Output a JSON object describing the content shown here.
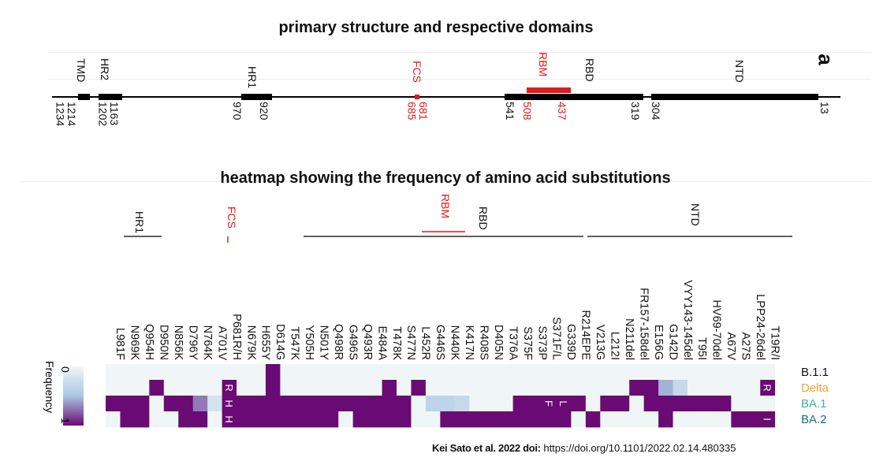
{
  "titles": {
    "structure": "primary structure and respective domains",
    "heatmap": "heatmap showing the frequency of amino acid substitutions",
    "panel_letter": "a"
  },
  "structure": {
    "domains": [
      {
        "label": "TMD",
        "color": "#111111"
      },
      {
        "label": "HR2",
        "color": "#111111"
      },
      {
        "label": "HR1",
        "color": "#111111"
      },
      {
        "label": "FCS",
        "color": "#e31a1c"
      },
      {
        "label": "RBM",
        "color": "#e31a1c"
      },
      {
        "label": "RBD",
        "color": "#111111"
      },
      {
        "label": "NTD",
        "color": "#111111"
      }
    ],
    "positions": [
      {
        "label": "1214\n1234",
        "color": "#111111"
      },
      {
        "label": "1163\n1202",
        "color": "#111111"
      },
      {
        "label": "970",
        "color": "#111111"
      },
      {
        "label": "920",
        "color": "#111111"
      },
      {
        "label": "681\n685",
        "color": "#e31a1c"
      },
      {
        "label": "541",
        "color": "#111111"
      },
      {
        "label": "508",
        "color": "#e31a1c"
      },
      {
        "label": "437",
        "color": "#e31a1c"
      },
      {
        "label": "319",
        "color": "#111111"
      },
      {
        "label": "304",
        "color": "#111111"
      },
      {
        "label": "13",
        "color": "#111111"
      }
    ]
  },
  "heatmap": {
    "region_labels": [
      {
        "label": "HR1",
        "color": "#111111"
      },
      {
        "label": "FCS",
        "color": "#e31a1c"
      },
      {
        "label": "RBM",
        "color": "#e31a1c"
      },
      {
        "label": "RBD",
        "color": "#111111"
      },
      {
        "label": "NTD",
        "color": "#111111"
      }
    ],
    "mutations": [
      "L981F",
      "N969K",
      "Q954H",
      "D950N",
      "N856K",
      "D796Y",
      "N764K",
      "A701V",
      "P681R/H",
      "N679K",
      "H655Y",
      "D614G",
      "T547K",
      "Y505H",
      "N501Y",
      "Q498R",
      "G496S",
      "Q493R",
      "E484A",
      "T478K",
      "S477N",
      "L452R",
      "G446S",
      "N440K",
      "K417N",
      "R408S",
      "D405N",
      "T376A",
      "S375F",
      "S373P",
      "S371F/L",
      "G339D",
      "R214EPE",
      "V213G",
      "L212I",
      "N211del",
      "FR157-158del",
      "E156G",
      "G142D",
      "VYY143-145del",
      "T95I",
      "HV69-70del",
      "A67V",
      "A27S",
      "LPP24-26del",
      "T19R/I"
    ],
    "variants": [
      {
        "name": "B.1.1",
        "color": "#111111"
      },
      {
        "name": "Delta",
        "color": "#f0a13a"
      },
      {
        "name": "BA.1",
        "color": "#3fb0a0"
      },
      {
        "name": "BA.2",
        "color": "#1a6e80"
      }
    ],
    "frequency_matrix": [
      [
        0,
        0,
        0,
        0,
        0,
        0,
        0,
        0,
        0,
        0,
        0,
        1,
        0,
        0,
        0,
        0,
        0,
        0,
        0,
        0,
        0,
        0,
        0,
        0,
        0,
        0,
        0,
        0,
        0,
        0,
        0,
        0,
        0,
        0,
        0,
        0,
        0,
        0,
        0,
        0,
        0,
        0,
        0,
        0,
        0,
        0
      ],
      [
        0,
        0,
        0,
        1,
        0,
        0,
        0,
        0,
        1,
        0,
        0,
        1,
        0,
        0,
        0,
        0,
        0,
        0,
        0,
        1,
        0,
        1,
        0,
        0,
        0,
        0,
        0,
        0,
        0,
        0,
        0,
        0,
        0,
        0,
        0,
        0,
        1,
        1,
        0.55,
        0.3,
        0,
        0,
        0,
        0,
        0,
        1
      ],
      [
        1,
        1,
        1,
        0,
        1,
        1,
        0.7,
        0.2,
        1,
        1,
        1,
        1,
        1,
        1,
        1,
        1,
        1,
        1,
        1,
        1,
        1,
        0,
        0.35,
        0.35,
        0.3,
        0,
        0,
        0,
        1,
        1,
        1,
        1,
        1,
        0,
        1,
        1,
        0,
        1,
        1,
        1,
        1,
        1,
        1,
        0,
        0,
        0
      ],
      [
        0,
        1,
        1,
        0,
        0,
        1,
        1,
        0,
        1,
        1,
        1,
        1,
        1,
        1,
        1,
        1,
        0,
        1,
        1,
        1,
        1,
        0,
        0,
        1,
        1,
        1,
        1,
        1,
        1,
        1,
        1,
        1,
        0,
        1,
        0,
        0,
        0,
        0,
        1,
        0,
        0,
        0,
        0,
        1,
        1,
        1
      ]
    ],
    "cell_annotations": [
      {
        "row": 1,
        "col": 8,
        "text": "R"
      },
      {
        "row": 2,
        "col": 8,
        "text": "H"
      },
      {
        "row": 3,
        "col": 8,
        "text": "H"
      },
      {
        "row": 2,
        "col": 30,
        "text": "F"
      },
      {
        "row": 2,
        "col": 31,
        "text": "L"
      },
      {
        "row": 1,
        "col": 45,
        "text": "R"
      },
      {
        "row": 3,
        "col": 45,
        "text": "I"
      }
    ],
    "legend": {
      "title": "Frequency",
      "min_label": "0",
      "max_label": "1",
      "low_color": "#f0f6f8",
      "mid_color": "#a9c6e2",
      "high_color": "#6a0a74"
    }
  },
  "credit": {
    "citation": "Kei Sato et al. 2022 doi:",
    "url": "https://doi.org/10.1101/2022.02.14.480335"
  }
}
